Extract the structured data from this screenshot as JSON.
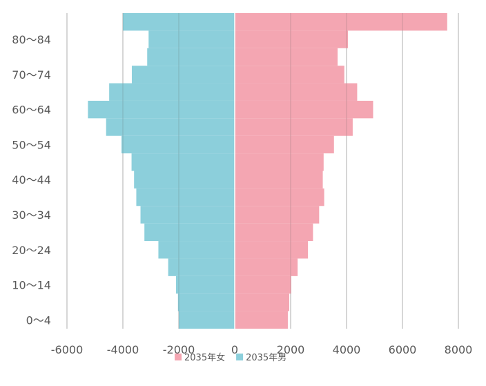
{
  "chart_data": {
    "type": "bar",
    "orientation": "horizontal",
    "stacked": false,
    "categories": [
      "0〜4",
      "5〜9",
      "10〜14",
      "15〜19",
      "20〜24",
      "25〜29",
      "30〜34",
      "35〜39",
      "40〜44",
      "45〜49",
      "50〜54",
      "55〜59",
      "60〜64",
      "65〜69",
      "70〜74",
      "75〜79",
      "80〜84",
      "85〜"
    ],
    "y_tick_labels": [
      "0〜4",
      "10〜14",
      "20〜24",
      "30〜34",
      "40〜44",
      "50〜54",
      "60〜64",
      "70〜74",
      "80〜84"
    ],
    "series": [
      {
        "name": "2035年女",
        "color": "#f4a6b2",
        "values": [
          1900,
          1950,
          2020,
          2250,
          2620,
          2800,
          3020,
          3200,
          3150,
          3180,
          3550,
          4220,
          4950,
          4380,
          3920,
          3680,
          4050,
          7600
        ]
      },
      {
        "name": "2035年男",
        "color": "#8ccfdb",
        "values": [
          -2000,
          -2030,
          -2100,
          -2380,
          -2730,
          -3230,
          -3370,
          -3520,
          -3600,
          -3690,
          -4050,
          -4600,
          -5250,
          -4490,
          -3680,
          -3130,
          -3080,
          -4000
        ]
      }
    ],
    "xlim": [
      -6000,
      8000
    ],
    "x_ticks": [
      -6000,
      -4000,
      -2000,
      0,
      2000,
      4000,
      6000,
      8000
    ],
    "x_tick_labels": [
      "-6000",
      "-4000",
      "-2000",
      "0",
      "2000",
      "4000",
      "6000",
      "8000"
    ],
    "grid": "vertical",
    "legend_position": "bottom",
    "title": "",
    "xlabel": "",
    "ylabel": ""
  }
}
